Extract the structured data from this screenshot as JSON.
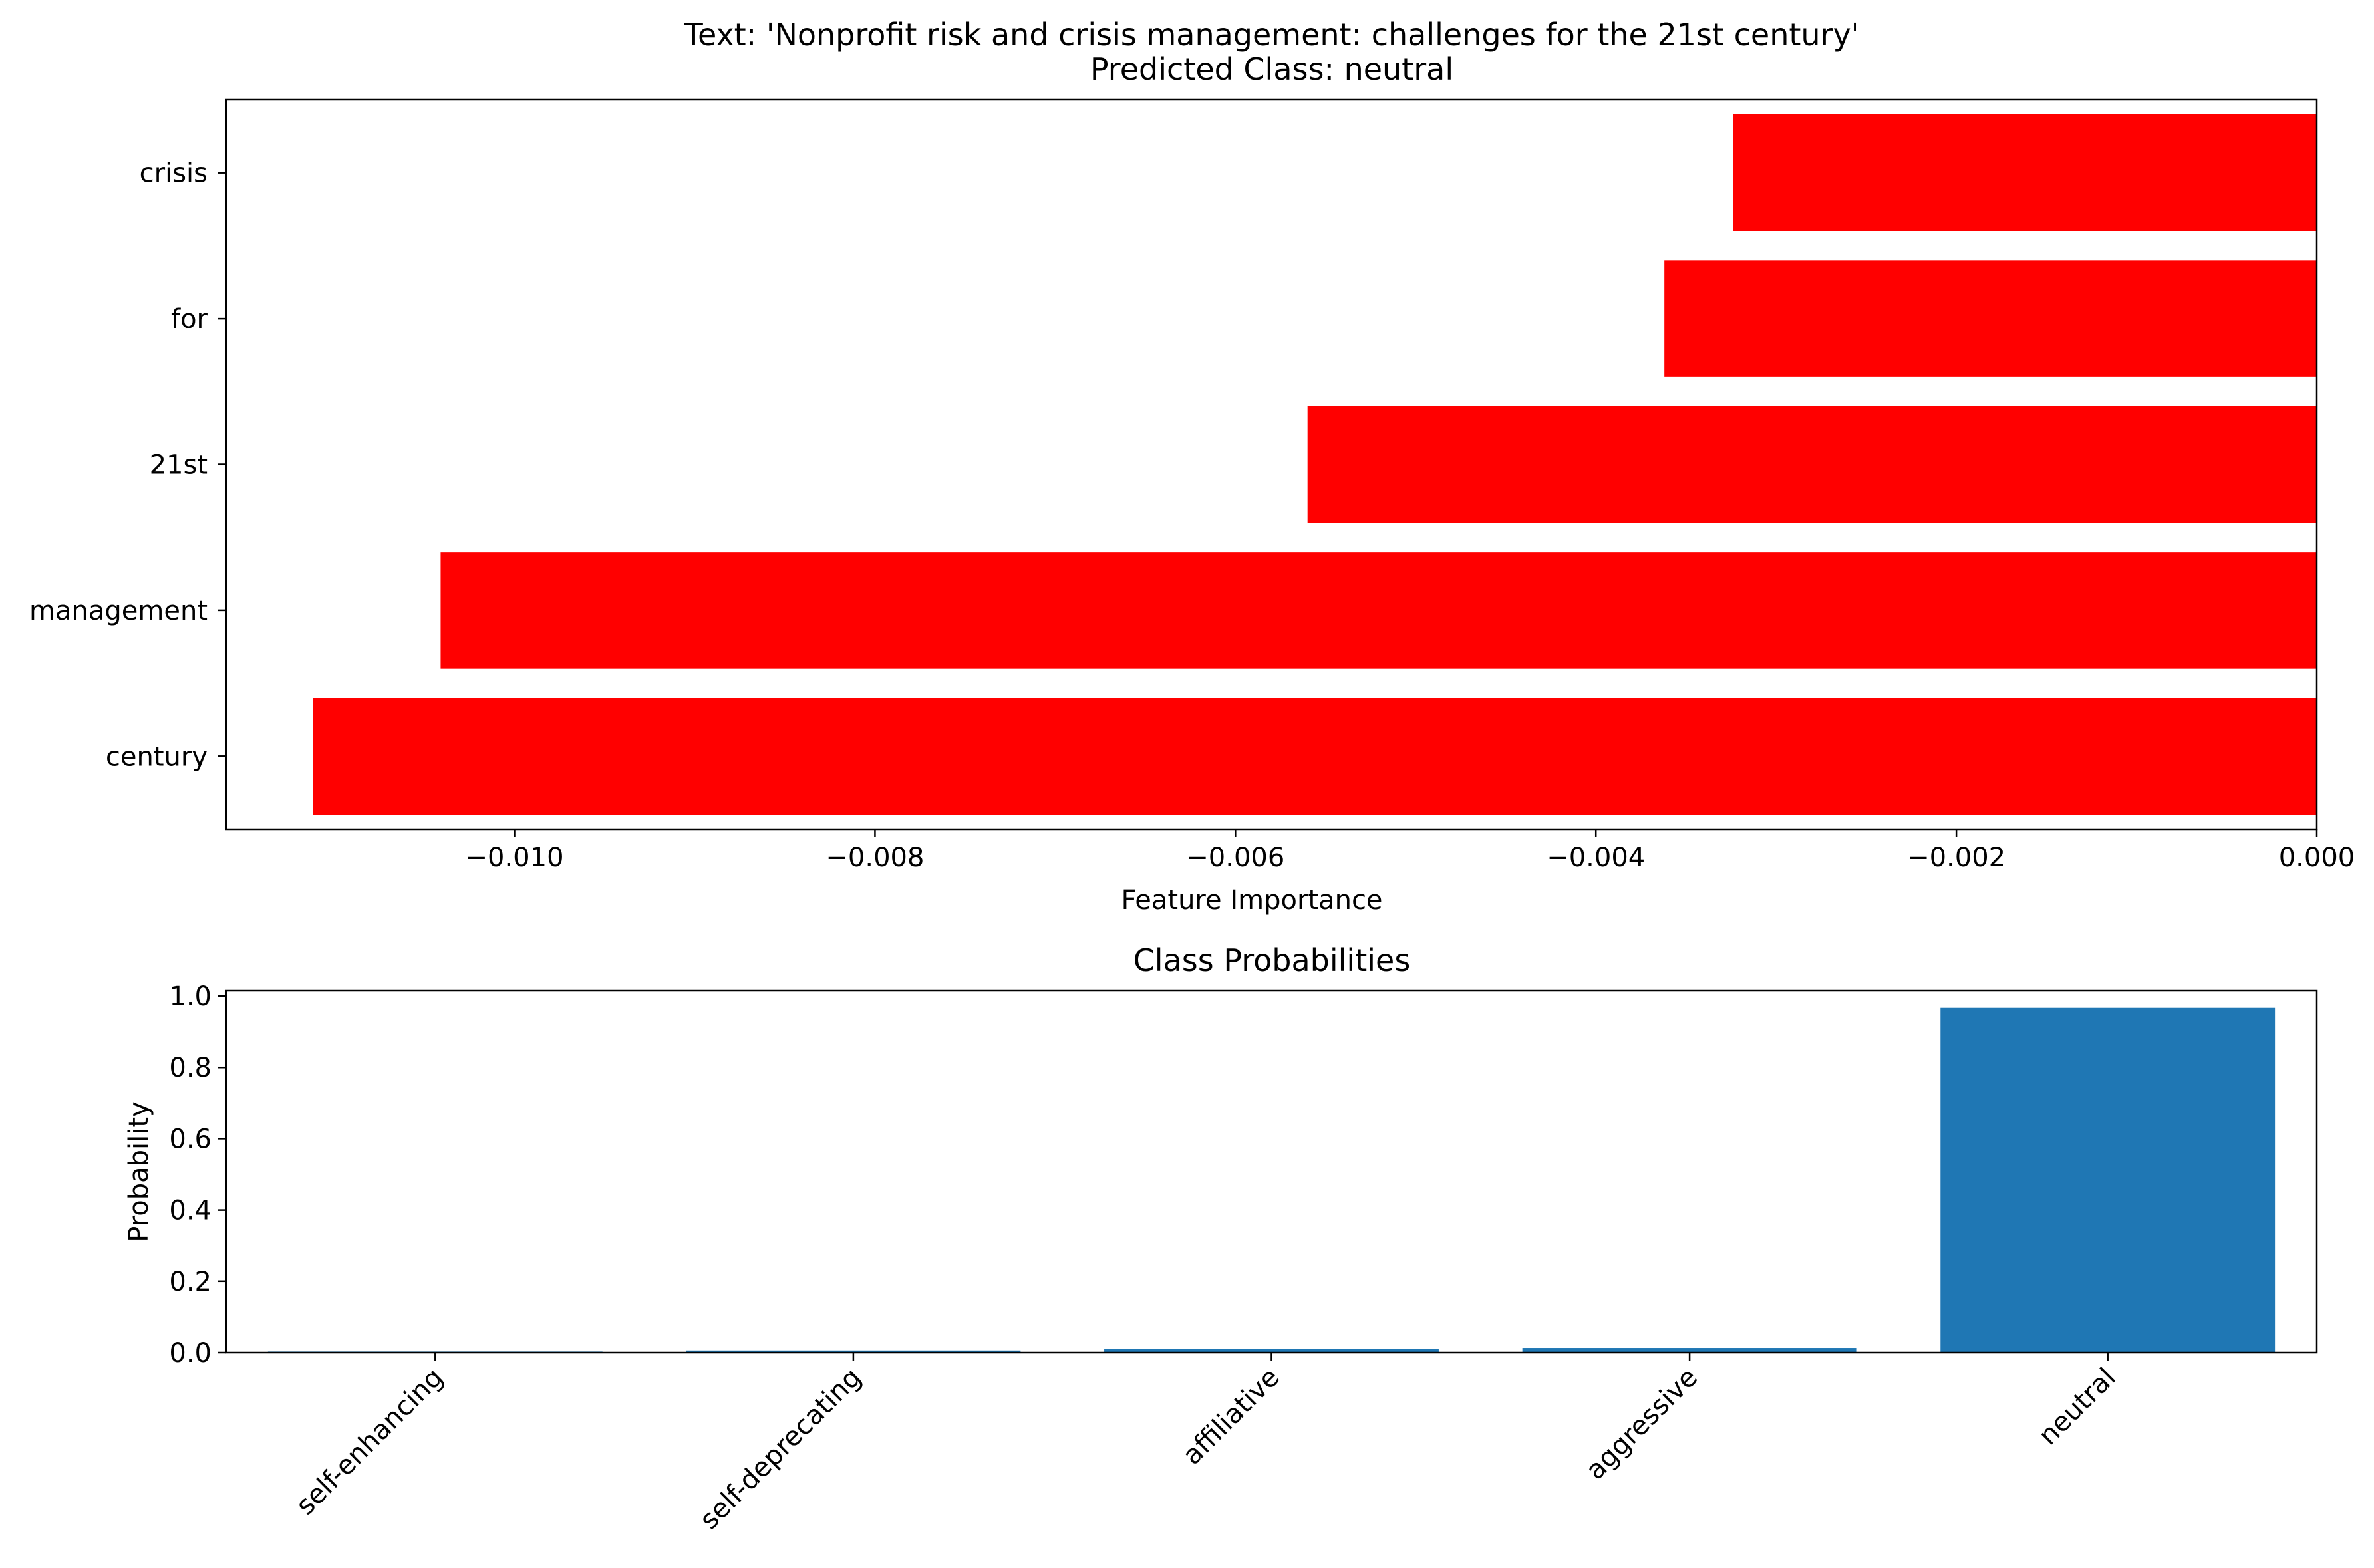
{
  "chart_data": [
    {
      "type": "bar",
      "orientation": "horizontal",
      "title": "Text: 'Nonprofit risk and crisis management: challenges for the 21st century'",
      "subtitle": "Predicted Class: neutral",
      "xlabel": "Feature Importance",
      "ylabel": "",
      "categories": [
        "century",
        "management",
        "21st",
        "for",
        "crisis"
      ],
      "values": [
        -0.01112,
        -0.01041,
        -0.0056,
        -0.00362,
        -0.00324
      ],
      "xlim": [
        -0.0116,
        0.0
      ],
      "xticks": [
        -0.01,
        -0.008,
        -0.006,
        -0.004,
        -0.002,
        0.0
      ],
      "xtick_labels": [
        "−0.010",
        "−0.008",
        "−0.006",
        "−0.004",
        "−0.002",
        "0.000"
      ],
      "bar_color": "#ff0000",
      "grid": false
    },
    {
      "type": "bar",
      "orientation": "vertical",
      "title": "Class Probabilities",
      "xlabel": "",
      "ylabel": "Probability",
      "categories": [
        "self-enhancing",
        "self-deprecating",
        "affiliative",
        "aggressive",
        "neutral"
      ],
      "values": [
        0.003,
        0.006,
        0.011,
        0.013,
        0.967
      ],
      "ylim": [
        0.0,
        1.015
      ],
      "yticks": [
        0.0,
        0.2,
        0.4,
        0.6,
        0.8,
        1.0
      ],
      "ytick_labels": [
        "0.0",
        "0.2",
        "0.4",
        "0.6",
        "0.8",
        "1.0"
      ],
      "bar_color": "#1f77b4",
      "xtick_rotation_deg": 45,
      "grid": false
    }
  ]
}
